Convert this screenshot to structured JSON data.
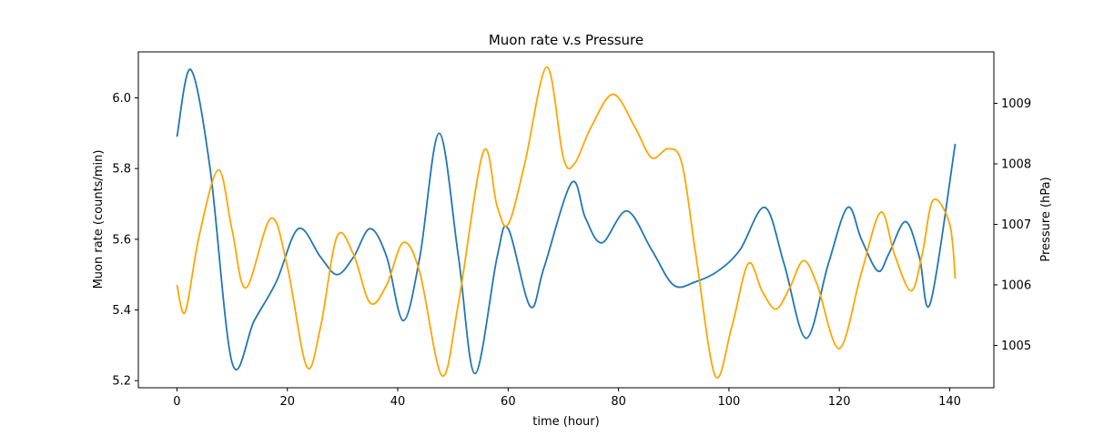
{
  "chart_data": {
    "type": "line",
    "title": "Muon rate v.s Pressure",
    "xlabel": "time (hour)",
    "ylabel": "Muon rate (counts/min)",
    "y2label": "Pressure (hPa)",
    "xlim": [
      -7,
      148
    ],
    "ylim": [
      5.18,
      6.13
    ],
    "y2lim": [
      1004.3,
      1009.85
    ],
    "x_ticks": [
      0,
      20,
      40,
      60,
      80,
      100,
      120,
      140
    ],
    "y_ticks": [
      5.2,
      5.4,
      5.6,
      5.8,
      6.0
    ],
    "y2_ticks": [
      1005,
      1006,
      1007,
      1008,
      1009
    ],
    "grid": false,
    "series": [
      {
        "name": "",
        "axis": "left",
        "color": "#1f77b4",
        "x": [
          0,
          2.5,
          6,
          10,
          14,
          18,
          22,
          26,
          29,
          32,
          35,
          38,
          41,
          44,
          47.5,
          51,
          54,
          58,
          60,
          64,
          66.5,
          71.5,
          74,
          77,
          81.5,
          86,
          90,
          94,
          98,
          102,
          106.5,
          110,
          114,
          118,
          121.5,
          124,
          127,
          129,
          132,
          134.5,
          136.5,
          141
        ],
        "values": [
          5.89,
          6.08,
          5.8,
          5.25,
          5.37,
          5.48,
          5.63,
          5.55,
          5.5,
          5.55,
          5.63,
          5.55,
          5.37,
          5.55,
          5.9,
          5.55,
          5.22,
          5.55,
          5.63,
          5.41,
          5.52,
          5.76,
          5.66,
          5.59,
          5.68,
          5.57,
          5.47,
          5.48,
          5.51,
          5.57,
          5.69,
          5.53,
          5.32,
          5.53,
          5.69,
          5.6,
          5.51,
          5.56,
          5.65,
          5.55,
          5.42,
          5.87
        ]
      },
      {
        "name": "",
        "axis": "right",
        "color": "#ffa500",
        "x": [
          0,
          1.5,
          4,
          7.5,
          10,
          12.5,
          17,
          20,
          23.5,
          26,
          29,
          32,
          35,
          38,
          41,
          44,
          48,
          51,
          55.5,
          58,
          60,
          63,
          67,
          70,
          72,
          75,
          79,
          83,
          86,
          89,
          91.5,
          94,
          97.5,
          100.5,
          103.5,
          106,
          108.5,
          111,
          113.5,
          116,
          120,
          124,
          127.5,
          130,
          133,
          135,
          137,
          140,
          141
        ],
        "values": [
          1006.0,
          1005.55,
          1006.8,
          1007.9,
          1006.9,
          1005.95,
          1007.1,
          1006.3,
          1004.65,
          1005.3,
          1006.8,
          1006.5,
          1005.7,
          1006.0,
          1006.7,
          1006.2,
          1004.5,
          1005.7,
          1008.2,
          1007.3,
          1007.0,
          1008.0,
          1009.6,
          1008.1,
          1008.0,
          1008.6,
          1009.15,
          1008.6,
          1008.1,
          1008.25,
          1008.0,
          1006.5,
          1004.5,
          1005.3,
          1006.35,
          1005.9,
          1005.6,
          1005.95,
          1006.4,
          1006.0,
          1004.95,
          1006.2,
          1007.2,
          1006.5,
          1005.9,
          1006.5,
          1007.4,
          1007.0,
          1006.1
        ]
      }
    ]
  }
}
